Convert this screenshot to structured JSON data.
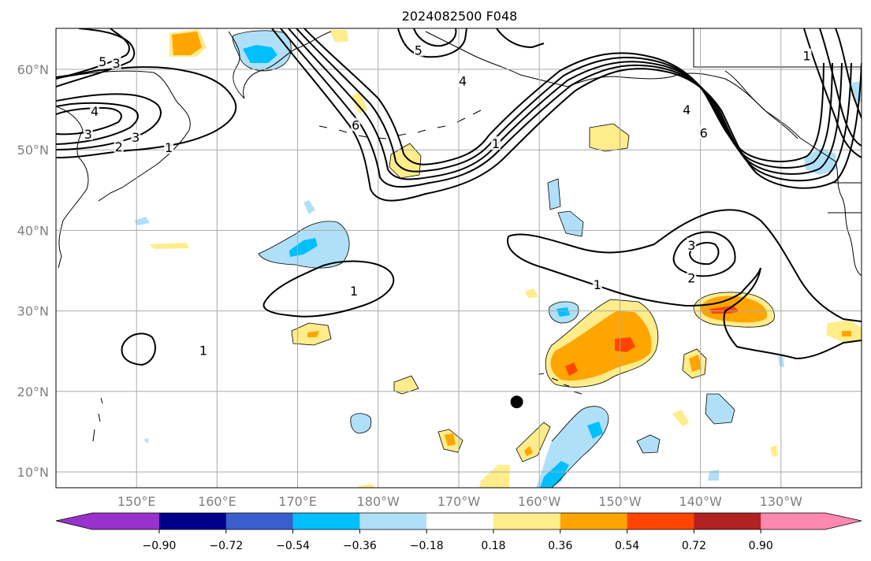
{
  "title": "2024082500 F048",
  "colors": {
    "neg": [
      "#9932cc",
      "#00008b",
      "#3a5fcd",
      "#00bfff",
      "#b0e0f8"
    ],
    "zero": "#ffffff",
    "pos": [
      "#ffec8b",
      "#ffa500",
      "#ff4500",
      "#b22222",
      "#ff88b0"
    ],
    "contour": "#000000",
    "coast": "#000000",
    "grid": "#aaaaaa"
  },
  "lat_ticks": [
    "10°N",
    "20°N",
    "30°N",
    "40°N",
    "50°N",
    "60°N"
  ],
  "lon_ticks": [
    "150°E",
    "160°E",
    "170°E",
    "180°W",
    "170°W",
    "160°W",
    "150°W",
    "140°W",
    "130°W"
  ],
  "colorbar": {
    "levels": [
      "−0.90",
      "−0.72",
      "−0.54",
      "−0.36",
      "−0.18",
      "0.18",
      "0.36",
      "0.54",
      "0.72",
      "0.90"
    ]
  },
  "marker": {
    "name": "black-dot",
    "lat": 18.7,
    "lon": -162.8
  },
  "contour_labels": [
    {
      "text": "4",
      "lat": 54.8,
      "lon": 144.8
    },
    {
      "text": "3",
      "lat": 52.0,
      "lon": 144.0
    },
    {
      "text": "3",
      "lat": 51.6,
      "lon": 149.9
    },
    {
      "text": "2",
      "lat": 50.4,
      "lon": 147.8
    },
    {
      "text": "1",
      "lat": 50.3,
      "lon": 154.0
    },
    {
      "text": "5",
      "lat": 61.0,
      "lon": 145.8
    },
    {
      "text": "3",
      "lat": 60.8,
      "lon": 147.5
    },
    {
      "text": "6",
      "lat": 53.1,
      "lon": 177.2
    },
    {
      "text": "1",
      "lat": 50.8,
      "lon": -165.4
    },
    {
      "text": "5",
      "lat": 62.4,
      "lon": -175.0
    },
    {
      "text": "4",
      "lat": 58.6,
      "lon": -169.5
    },
    {
      "text": "6",
      "lat": 52.1,
      "lon": -139.6
    },
    {
      "text": "4",
      "lat": 55.0,
      "lon": -141.7
    },
    {
      "text": "1",
      "lat": 32.5,
      "lon": 177.0
    },
    {
      "text": "1",
      "lat": 25.1,
      "lon": 158.3
    },
    {
      "text": "1",
      "lat": 33.3,
      "lon": -152.8
    },
    {
      "text": "3",
      "lat": 38.2,
      "lon": -141.1
    },
    {
      "text": "2",
      "lat": 34.1,
      "lon": -141.1
    },
    {
      "text": "1",
      "lat": 61.7,
      "lon": -126.8
    }
  ]
}
